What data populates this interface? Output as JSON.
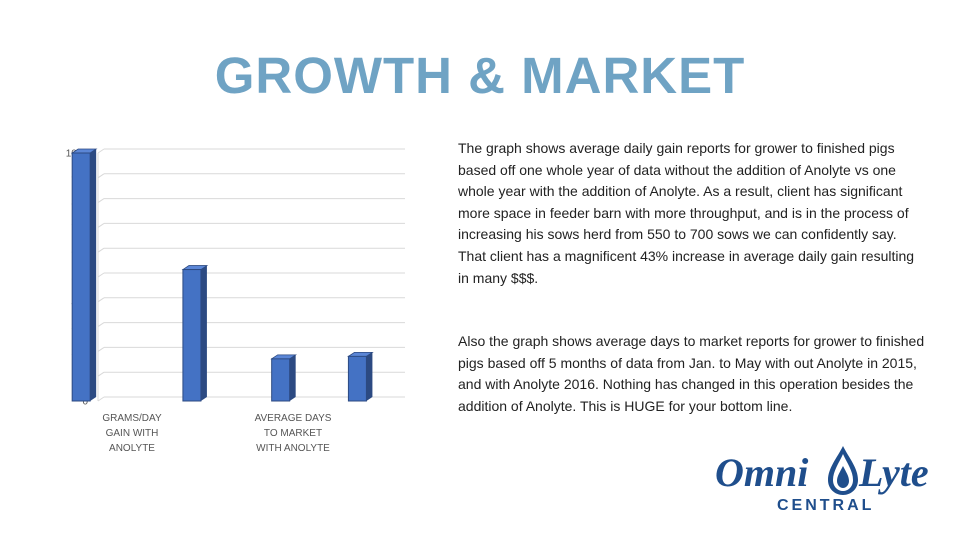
{
  "title": "GROWTH & MARKET",
  "colors": {
    "title": "#6fa3c4",
    "bar_front": "#4472c4",
    "bar_side": "#2c4a82",
    "bar_top": "#5b86d6",
    "gridline": "#d9d9d9",
    "logo_dark": "#1f4e8c"
  },
  "paragraphs": [
    "The graph shows average daily gain reports for grower to finished pigs based off one whole year of data without the addition of Anolyte vs one whole year with the addition of Anolyte. As a result, client has significant more space in feeder barn with more throughput, and is in the process of increasing his sows herd from 550 to 700 sows we can confidently say. That client has a magnificent 43% increase in average daily gain resulting in many $$$.",
    "Also the graph shows average days to market reports for grower to finished pigs based off 5 months of data from Jan. to May with out Anolyte in 2015, and with Anolyte 2016. Nothing has changed in this operation besides the addition of Anolyte. This is HUGE for your bottom line."
  ],
  "logo": {
    "text_left": "Omni",
    "text_right": "Lyte",
    "subtitle": "CENTRAL",
    "icon": "water-drop-icon"
  },
  "chart_data": {
    "type": "bar",
    "three_d": true,
    "categories": [
      "GRAMS/DAY GAIN WITH ANOLYTE",
      "AVERAGE DAYS TO MARKET WITH ANOLYTE"
    ],
    "category_label_lines": [
      [
        "GRAMS/DAY",
        "GAIN WITH",
        "ANOLYTE"
      ],
      [
        "AVERAGE DAYS",
        "TO MARKET",
        "WITH ANOLYTE"
      ]
    ],
    "bars": [
      {
        "category_index": 0,
        "value": 1000
      },
      {
        "category_index": 0,
        "value": 530
      },
      {
        "category_index": 1,
        "value": 170
      },
      {
        "category_index": 1,
        "value": 180
      }
    ],
    "ylim": [
      0,
      1000
    ],
    "yticks": [
      0,
      100,
      200,
      300,
      400,
      500,
      600,
      700,
      800,
      900,
      1000
    ],
    "grid": true,
    "legend": "none"
  }
}
